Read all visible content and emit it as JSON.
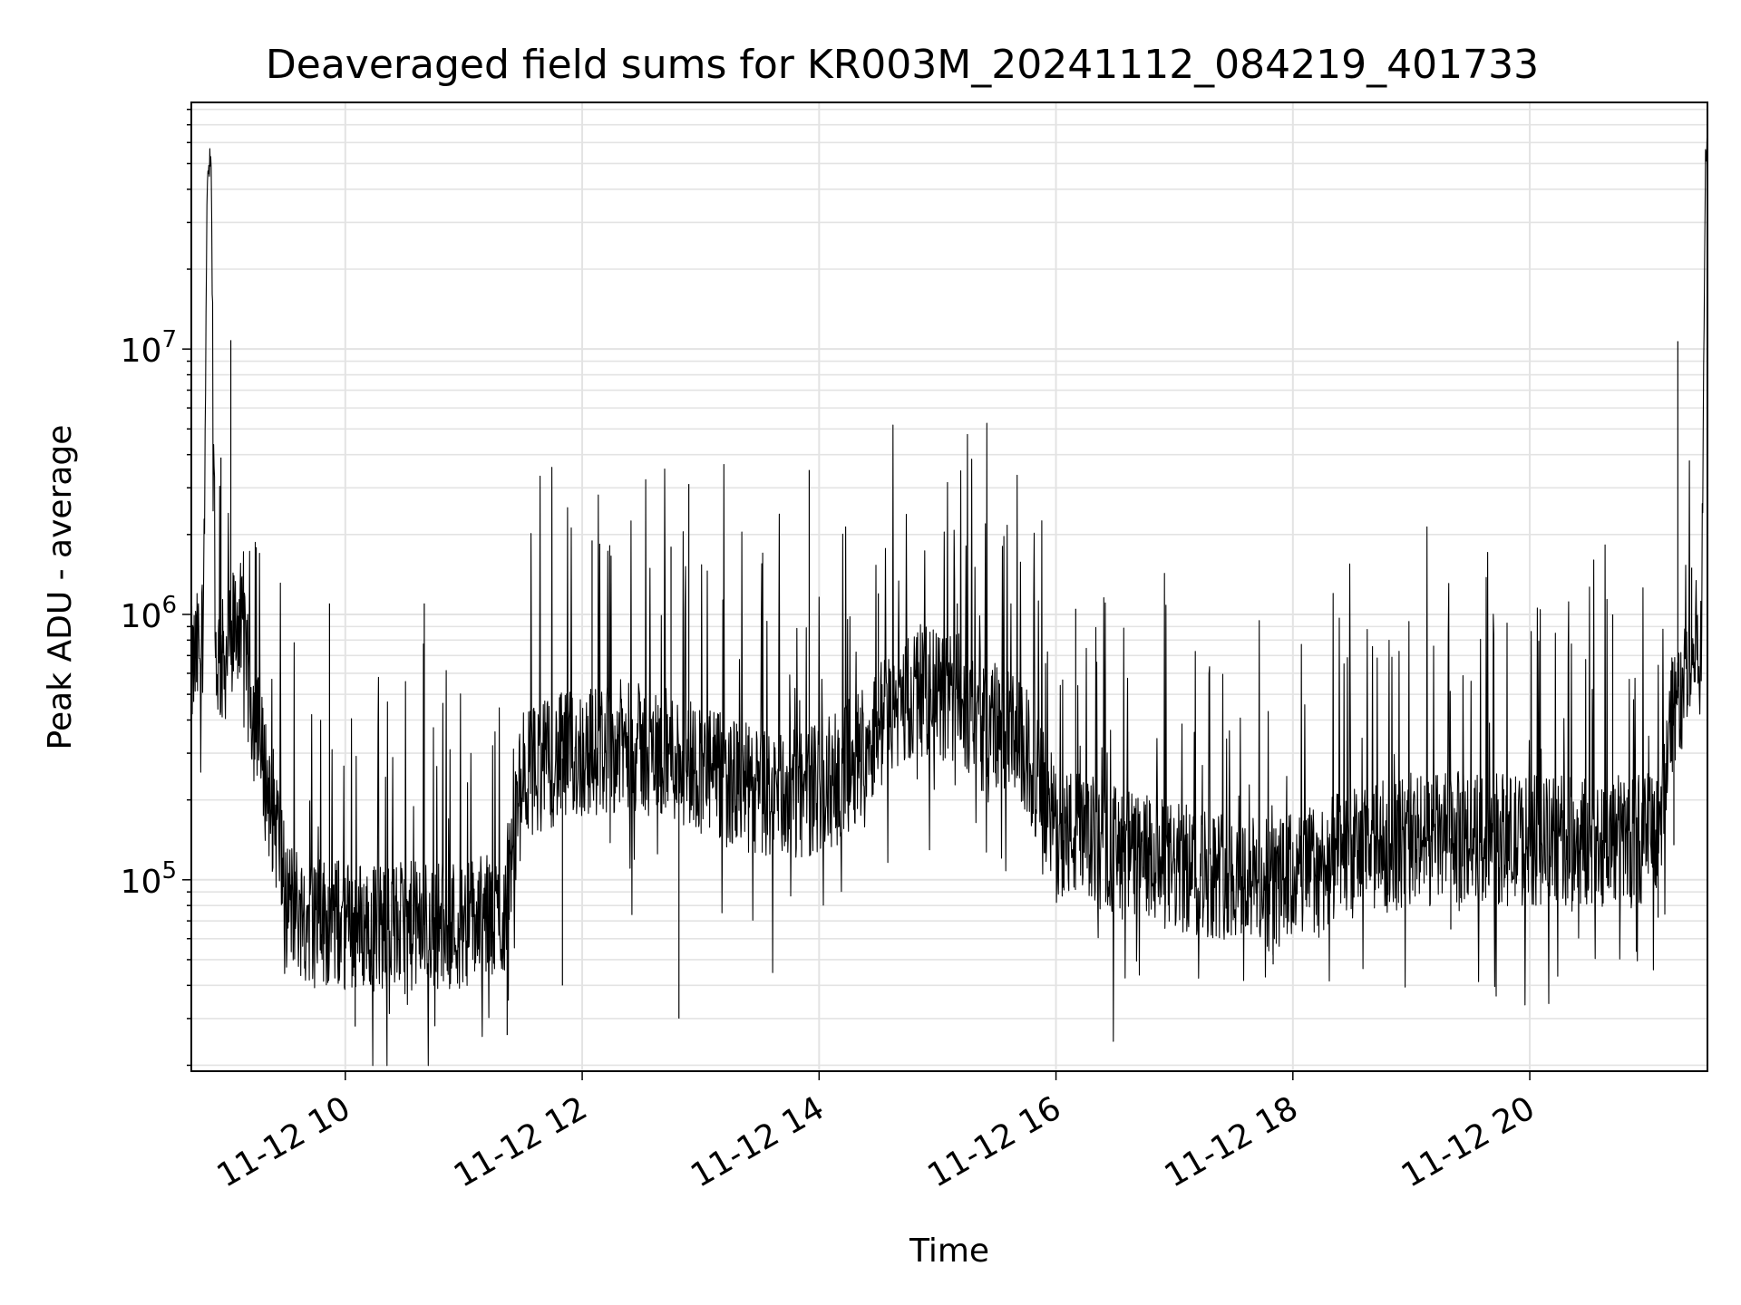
{
  "chart_data": {
    "type": "line",
    "title": "Deaveraged field sums for KR003M_20241112_084219_401733",
    "xlabel": "Time",
    "ylabel": "Peak ADU - average",
    "x_axis": {
      "kind": "datetime",
      "range": [
        "2024-11-12 08:42",
        "2024-11-12 21:30"
      ],
      "tick_values": [
        "2024-11-12 10:00",
        "2024-11-12 12:00",
        "2024-11-12 14:00",
        "2024-11-12 16:00",
        "2024-11-12 18:00",
        "2024-11-12 20:00"
      ],
      "tick_labels": [
        "11-12 10",
        "11-12 12",
        "11-12 14",
        "11-12 16",
        "11-12 18",
        "11-12 20"
      ]
    },
    "y_axis": {
      "scale": "log",
      "range": [
        19000,
        85000000
      ],
      "tick_values": [
        100000,
        1000000,
        10000000
      ],
      "tick_labels": [
        {
          "base": "10",
          "exp": "5"
        },
        {
          "base": "10",
          "exp": "6"
        },
        {
          "base": "10",
          "exp": "7"
        }
      ]
    },
    "grid": true,
    "line_color": "#000000",
    "series": [
      {
        "x": [
          "2024-11-12 08:42",
          "2024-11-12 08:45",
          "2024-11-12 08:48",
          "2024-11-12 08:50",
          "2024-11-12 08:52",
          "2024-11-12 08:54",
          "2024-11-12 08:58",
          "2024-11-12 09:02",
          "2024-11-12 09:06",
          "2024-11-12 09:10",
          "2024-11-12 09:14",
          "2024-11-12 09:18",
          "2024-11-12 09:22",
          "2024-11-12 09:26",
          "2024-11-12 09:30",
          "2024-11-12 09:40",
          "2024-11-12 10:00",
          "2024-11-12 10:30",
          "2024-11-12 11:00",
          "2024-11-12 11:20",
          "2024-11-12 11:30",
          "2024-11-12 11:45",
          "2024-11-12 12:00",
          "2024-11-12 12:20",
          "2024-11-12 12:40",
          "2024-11-12 12:55",
          "2024-11-12 13:10",
          "2024-11-12 13:30",
          "2024-11-12 13:50",
          "2024-11-12 14:10",
          "2024-11-12 14:30",
          "2024-11-12 14:50",
          "2024-11-12 15:10",
          "2024-11-12 15:30",
          "2024-11-12 15:45",
          "2024-11-12 16:00",
          "2024-11-12 16:30",
          "2024-11-12 17:00",
          "2024-11-12 17:30",
          "2024-11-12 17:50",
          "2024-11-12 18:10",
          "2024-11-12 18:30",
          "2024-11-12 19:00",
          "2024-11-12 19:30",
          "2024-11-12 20:00",
          "2024-11-12 20:30",
          "2024-11-12 21:00",
          "2024-11-12 21:05",
          "2024-11-12 21:12",
          "2024-11-12 21:18",
          "2024-11-12 21:22",
          "2024-11-12 21:25",
          "2024-11-12 21:27",
          "2024-11-12 21:29",
          "2024-11-12 21:30"
        ],
        "y": [
          600000,
          700000,
          900000,
          40000000,
          58000000,
          700000,
          650000,
          800000,
          1000000,
          600000,
          400000,
          280000,
          200000,
          150000,
          85000,
          72000,
          68000,
          66000,
          70000,
          72000,
          250000,
          280000,
          300000,
          320000,
          300000,
          280000,
          240000,
          210000,
          210000,
          240000,
          380000,
          520000,
          480000,
          380000,
          300000,
          155000,
          130000,
          110000,
          105000,
          95000,
          110000,
          125000,
          140000,
          145000,
          140000,
          140000,
          145000,
          150000,
          450000,
          520000,
          650000,
          800000,
          700000,
          58000000,
          56000000
        ],
        "spikes": [
          {
            "x": "2024-11-12 08:57",
            "y": 3900000
          },
          {
            "x": "2024-11-12 09:02",
            "y": 10800000
          },
          {
            "x": "2024-11-12 09:52",
            "y": 1100000
          },
          {
            "x": "2024-11-12 10:05",
            "y": 28000
          },
          {
            "x": "2024-11-12 10:40",
            "y": 1100000
          },
          {
            "x": "2024-11-12 11:22",
            "y": 26000
          },
          {
            "x": "2024-11-12 11:50",
            "y": 40000
          },
          {
            "x": "2024-11-12 12:05",
            "y": 1900000
          },
          {
            "x": "2024-11-12 12:45",
            "y": 1800000
          },
          {
            "x": "2024-11-12 12:49",
            "y": 30000
          },
          {
            "x": "2024-11-12 12:54",
            "y": 3100000
          },
          {
            "x": "2024-11-12 13:55",
            "y": 3500000
          },
          {
            "x": "2024-11-12 14:30",
            "y": 1200000
          },
          {
            "x": "2024-11-12 15:10",
            "y": 1100000
          },
          {
            "x": "2024-11-12 16:10",
            "y": 1050000
          },
          {
            "x": "2024-11-12 17:50",
            "y": 48000
          },
          {
            "x": "2024-11-12 19:20",
            "y": 65000
          },
          {
            "x": "2024-11-12 20:42",
            "y": 1000000
          },
          {
            "x": "2024-11-12 21:05",
            "y": 72000
          },
          {
            "x": "2024-11-12 21:13",
            "y": 135000
          },
          {
            "x": "2024-11-12 21:15",
            "y": 10700000
          },
          {
            "x": "2024-11-12 21:22",
            "y": 1500000
          }
        ]
      }
    ]
  }
}
